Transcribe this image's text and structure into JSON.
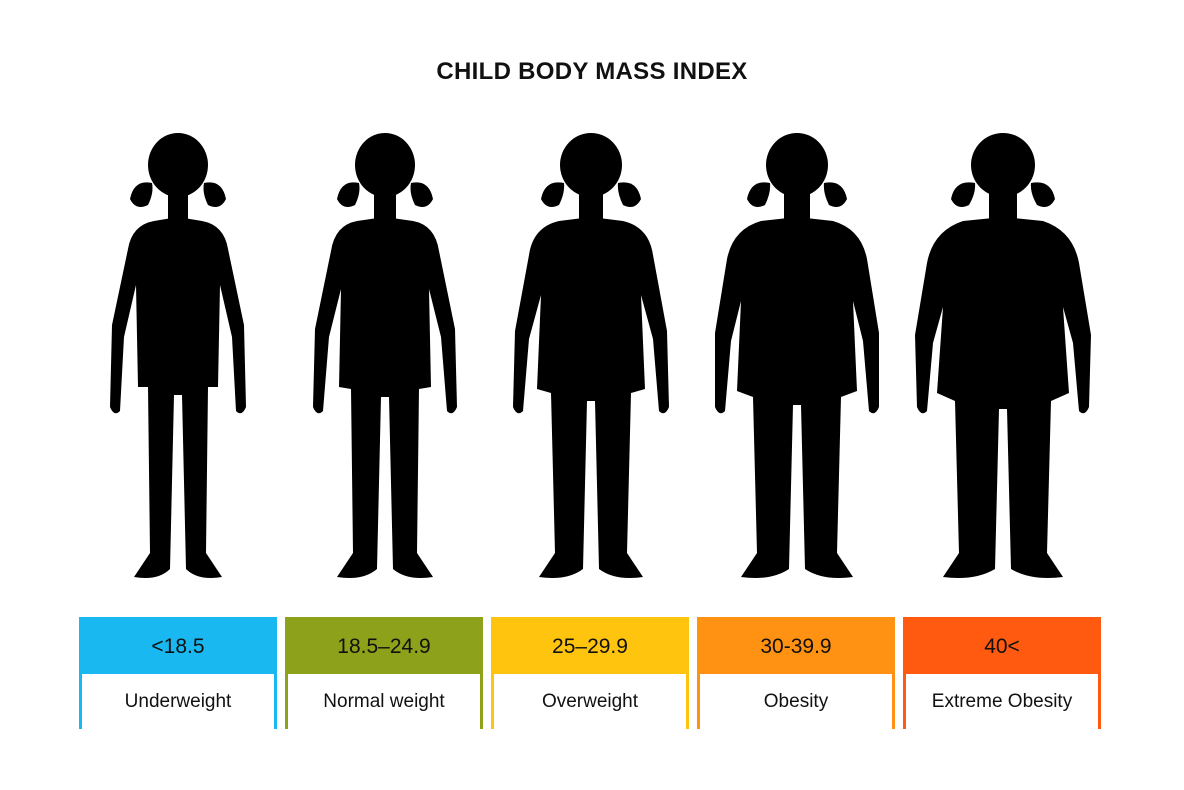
{
  "title": "CHILD BODY MASS INDEX",
  "categories": [
    {
      "range": "<18.5",
      "label": "Underweight",
      "color": "#1ab8f0",
      "body": "underweight-child-silhouette-icon"
    },
    {
      "range": "18.5–24.9",
      "label": "Normal weight",
      "color": "#8ea11a",
      "body": "normal-weight-child-silhouette-icon"
    },
    {
      "range": "25–29.9",
      "label": "Overweight",
      "color": "#ffc40e",
      "body": "overweight-child-silhouette-icon"
    },
    {
      "range": "30-39.9",
      "label": "Obesity",
      "color": "#ff9113",
      "body": "obese-child-silhouette-icon"
    },
    {
      "range": "40<",
      "label": "Extreme Obesity",
      "color": "#ff5a10",
      "body": "extremely-obese-child-silhouette-icon"
    }
  ]
}
